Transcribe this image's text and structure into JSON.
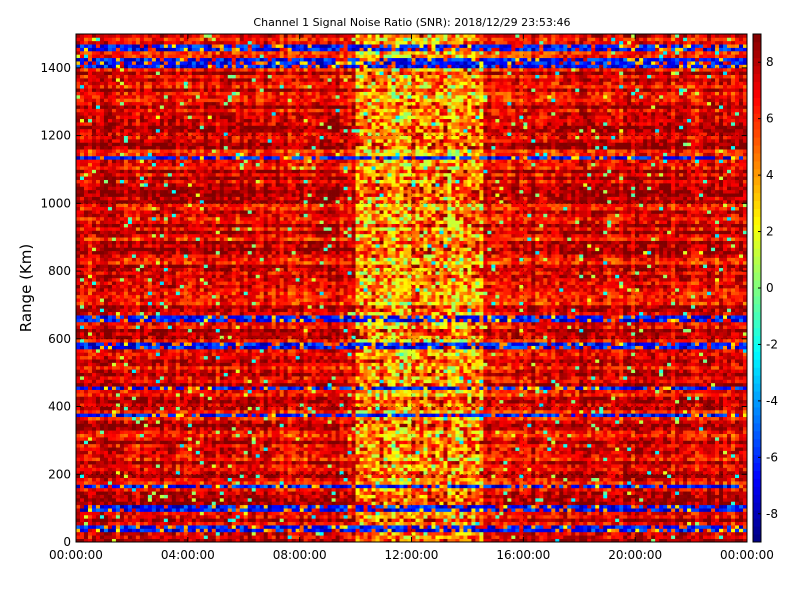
{
  "chart_data": {
    "type": "heatmap",
    "title": "Channel 1 Signal Noise Ratio (SNR): 2018/12/29 23:53:46",
    "xlabel": "",
    "ylabel": "Range (Km)",
    "x_ticks": [
      "00:00:00",
      "04:00:00",
      "08:00:00",
      "12:00:00",
      "16:00:00",
      "20:00:00",
      "00:00:00"
    ],
    "y_ticks": [
      "0",
      "200",
      "400",
      "600",
      "800",
      "1000",
      "1200",
      "1400"
    ],
    "y_tick_values": [
      0,
      200,
      400,
      600,
      800,
      1000,
      1200,
      1400
    ],
    "ylim": [
      0,
      1500
    ],
    "xlim_hours": [
      0,
      24
    ],
    "colorbar": {
      "colormap": "jet",
      "vmin": -9,
      "vmax": 9,
      "ticks": [
        "-8",
        "-6",
        "-4",
        "-2",
        "0",
        "2",
        "4",
        "6",
        "8"
      ],
      "tick_values": [
        -8,
        -6,
        -4,
        -2,
        0,
        2,
        4,
        6,
        8
      ]
    },
    "grid": true,
    "noise_bands_km": [
      [
        30,
        45
      ],
      [
        90,
        105
      ],
      [
        160,
        170
      ],
      [
        370,
        380
      ],
      [
        450,
        460
      ],
      [
        570,
        585
      ],
      [
        650,
        665
      ],
      [
        1130,
        1140
      ],
      [
        1400,
        1425
      ],
      [
        1450,
        1470
      ]
    ],
    "low_snr_daytime_hours": [
      10.0,
      14.5
    ]
  }
}
